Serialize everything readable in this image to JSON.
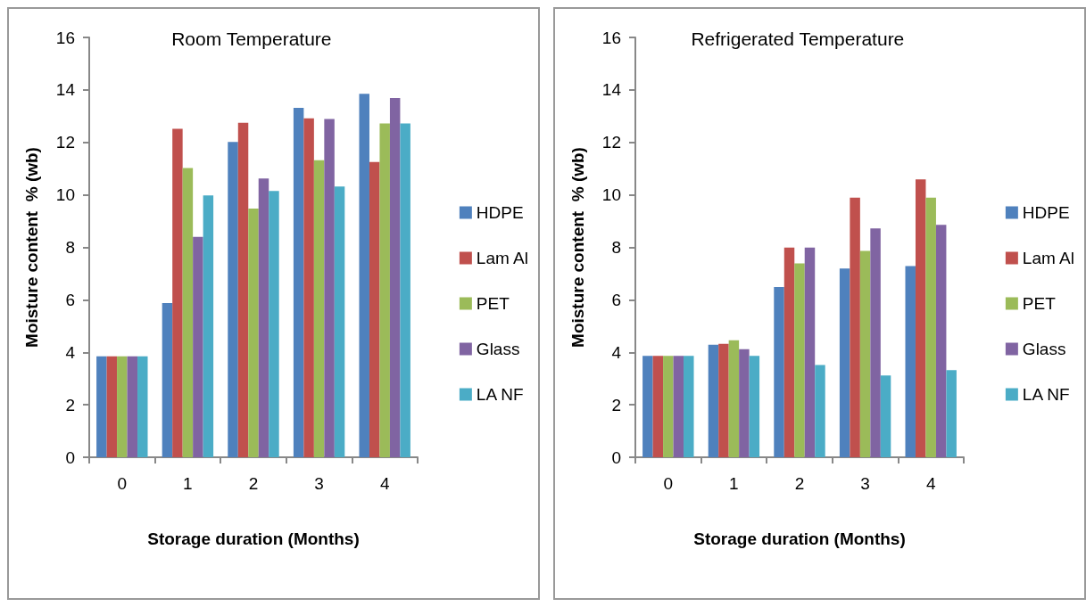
{
  "chart_data": [
    {
      "type": "bar",
      "title": "Room Temperature",
      "xlabel": "Storage duration (Months)",
      "ylabel": "Moisture content  % (wb)",
      "categories": [
        "0",
        "1",
        "2",
        "3",
        "4"
      ],
      "ylim": [
        0,
        16
      ],
      "yticks": [
        0,
        2,
        4,
        6,
        8,
        10,
        12,
        14,
        16
      ],
      "grid": false,
      "legend": "right",
      "series": [
        {
          "name": "HDPE",
          "color": "#4f81bd",
          "values": [
            3.85,
            5.88,
            12.02,
            13.32,
            13.85
          ]
        },
        {
          "name": "Lam Al",
          "color": "#c0504d",
          "values": [
            3.85,
            12.52,
            12.75,
            12.92,
            11.25
          ]
        },
        {
          "name": "PET",
          "color": "#9bbb59",
          "values": [
            3.85,
            11.02,
            9.48,
            11.32,
            12.72
          ]
        },
        {
          "name": "Glass",
          "color": "#8064a2",
          "values": [
            3.85,
            8.4,
            10.62,
            12.89,
            13.69
          ]
        },
        {
          "name": "LA NF",
          "color": "#4bacc6",
          "values": [
            3.85,
            9.98,
            10.15,
            10.32,
            12.72
          ]
        }
      ]
    },
    {
      "type": "bar",
      "title": "Refrigerated Temperature",
      "xlabel": "Storage duration (Months)",
      "ylabel": "Moisture content  % (wb)",
      "categories": [
        "0",
        "1",
        "2",
        "3",
        "4"
      ],
      "ylim": [
        0,
        16
      ],
      "yticks": [
        0,
        2,
        4,
        6,
        8,
        10,
        12,
        14,
        16
      ],
      "grid": false,
      "legend": "right",
      "series": [
        {
          "name": "HDPE",
          "color": "#4f81bd",
          "values": [
            3.86,
            4.29,
            6.49,
            7.19,
            7.29
          ]
        },
        {
          "name": "Lam Al",
          "color": "#c0504d",
          "values": [
            3.86,
            4.32,
            7.99,
            9.89,
            10.59
          ]
        },
        {
          "name": "PET",
          "color": "#9bbb59",
          "values": [
            3.86,
            4.46,
            7.39,
            7.86,
            9.89
          ]
        },
        {
          "name": "Glass",
          "color": "#8064a2",
          "values": [
            3.86,
            4.12,
            7.99,
            8.72,
            8.86
          ]
        },
        {
          "name": "LA NF",
          "color": "#4bacc6",
          "values": [
            3.86,
            3.86,
            3.52,
            3.12,
            3.32
          ]
        }
      ]
    }
  ]
}
